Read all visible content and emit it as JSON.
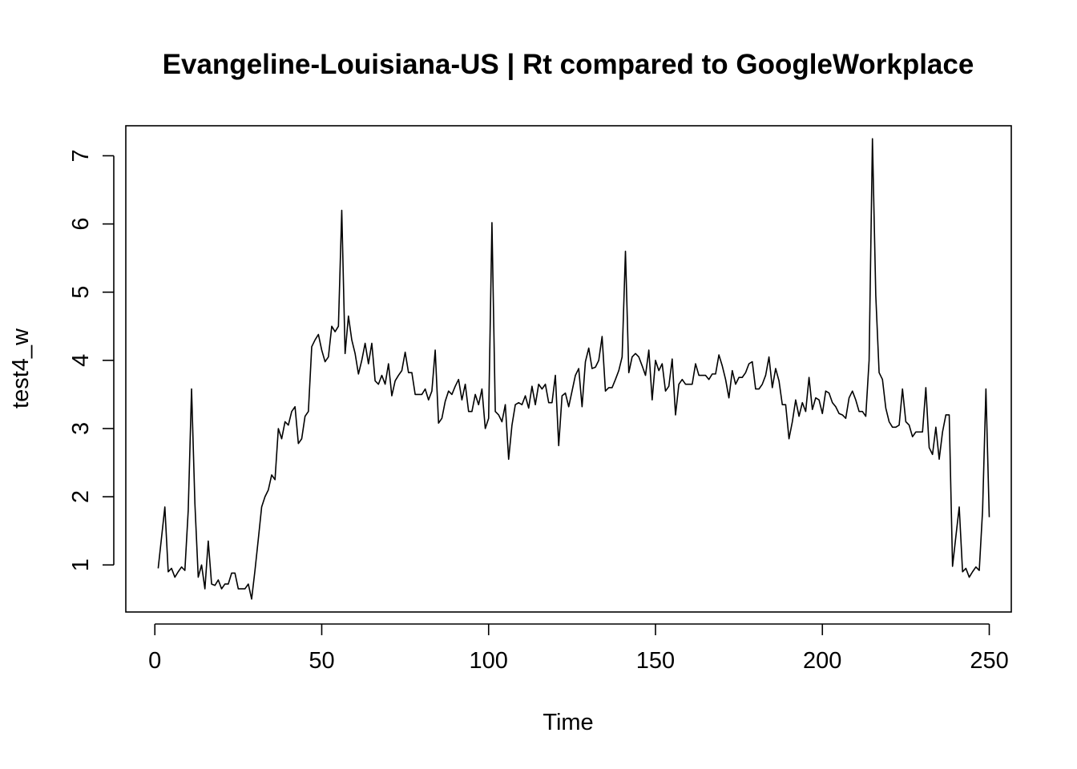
{
  "chart_data": {
    "type": "line",
    "title": "Evangeline-Louisiana-US | Rt compared to GoogleWorkplace",
    "xlabel": "Time",
    "ylabel": "test4_w",
    "xlim": [
      -8.7,
      256.6
    ],
    "ylim": [
      0.31,
      7.44
    ],
    "xticks": [
      0,
      50,
      100,
      150,
      200,
      250
    ],
    "yticks": [
      1,
      2,
      3,
      4,
      5,
      6,
      7
    ],
    "grid": false,
    "x_start": 1,
    "series": [
      {
        "values": [
          0.95,
          1.4,
          1.85,
          0.9,
          0.95,
          0.82,
          0.9,
          0.97,
          0.92,
          1.8,
          3.58,
          1.9,
          0.82,
          1.0,
          0.65,
          1.35,
          0.72,
          0.7,
          0.78,
          0.65,
          0.72,
          0.72,
          0.88,
          0.88,
          0.65,
          0.65,
          0.65,
          0.72,
          0.5,
          0.92,
          1.38,
          1.85,
          2.0,
          2.1,
          2.32,
          2.25,
          3.0,
          2.85,
          3.1,
          3.05,
          3.25,
          3.32,
          2.78,
          2.85,
          3.18,
          3.25,
          4.2,
          4.3,
          4.38,
          4.15,
          3.98,
          4.05,
          4.5,
          4.42,
          4.5,
          6.2,
          4.1,
          4.65,
          4.3,
          4.1,
          3.8,
          4.0,
          4.25,
          3.95,
          4.25,
          3.7,
          3.65,
          3.78,
          3.65,
          3.95,
          3.48,
          3.7,
          3.78,
          3.85,
          4.12,
          3.82,
          3.82,
          3.5,
          3.5,
          3.5,
          3.58,
          3.42,
          3.55,
          4.15,
          3.08,
          3.15,
          3.4,
          3.55,
          3.5,
          3.62,
          3.72,
          3.42,
          3.65,
          3.25,
          3.25,
          3.5,
          3.35,
          3.58,
          3.0,
          3.15,
          6.02,
          3.25,
          3.2,
          3.1,
          3.35,
          2.55,
          3.05,
          3.35,
          3.38,
          3.35,
          3.48,
          3.3,
          3.62,
          3.35,
          3.65,
          3.58,
          3.65,
          3.38,
          3.38,
          3.78,
          2.75,
          3.48,
          3.52,
          3.32,
          3.55,
          3.78,
          3.88,
          3.32,
          3.98,
          4.18,
          3.88,
          3.9,
          4.0,
          4.35,
          3.55,
          3.6,
          3.6,
          3.72,
          3.85,
          4.05,
          5.6,
          3.82,
          4.05,
          4.1,
          4.05,
          3.92,
          3.78,
          4.15,
          3.42,
          4.0,
          3.85,
          3.95,
          3.55,
          3.62,
          4.02,
          3.2,
          3.65,
          3.72,
          3.65,
          3.65,
          3.65,
          3.95,
          3.78,
          3.78,
          3.78,
          3.72,
          3.8,
          3.8,
          4.08,
          3.92,
          3.72,
          3.45,
          3.85,
          3.65,
          3.75,
          3.75,
          3.82,
          3.95,
          3.98,
          3.58,
          3.58,
          3.65,
          3.78,
          4.05,
          3.6,
          3.88,
          3.7,
          3.35,
          3.35,
          2.85,
          3.1,
          3.42,
          3.18,
          3.38,
          3.25,
          3.75,
          3.28,
          3.45,
          3.42,
          3.22,
          3.55,
          3.52,
          3.38,
          3.32,
          3.22,
          3.2,
          3.15,
          3.45,
          3.55,
          3.42,
          3.25,
          3.25,
          3.18,
          4.0,
          7.25,
          4.95,
          3.82,
          3.72,
          3.3,
          3.1,
          3.02,
          3.02,
          3.05,
          3.58,
          3.1,
          3.05,
          2.88,
          2.95,
          2.95,
          2.95,
          3.6,
          2.72,
          2.62,
          3.02,
          2.55,
          2.95,
          3.2,
          3.2,
          0.98,
          1.42,
          1.85,
          0.9,
          0.95,
          0.82,
          0.9,
          0.97,
          0.92,
          1.8,
          3.58,
          1.7
        ]
      }
    ]
  }
}
